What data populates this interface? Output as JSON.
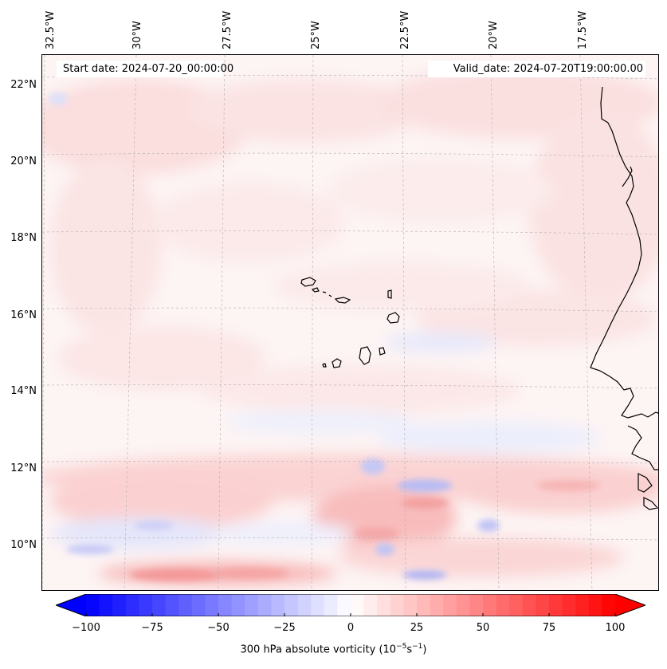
{
  "map": {
    "title_left_label": "Start date: 2024-07-20_00:00:00",
    "title_right_label": "Valid_date: 2024-07-20T19:00:00.00",
    "longitude_labels": [
      "32.5°W",
      "30°W",
      "27.5°W",
      "25°W",
      "22.5°W",
      "20°W",
      "17.5°W"
    ],
    "latitude_labels": [
      "22°N",
      "20°N",
      "18°N",
      "16°N",
      "14°N",
      "12°N",
      "10°N"
    ],
    "variable": "300 hPa absolute vorticity",
    "region": "Cape Verde Islands and West African coast"
  },
  "colorbar": {
    "label_text": "300 hPa absolute vorticity (10",
    "label_exp1": "−5",
    "label_mid": "s",
    "label_exp2": "−1",
    "label_end": ")",
    "ticks": [
      "−100",
      "−75",
      "−50",
      "−25",
      "0",
      "25",
      "50",
      "75",
      "100"
    ],
    "tick_values": [
      -100,
      -75,
      -50,
      -25,
      0,
      25,
      50,
      75,
      100
    ],
    "min": -100,
    "max": 100,
    "colormap": "bwr",
    "color_min": "#0000ff",
    "color_mid": "#ffffff",
    "color_max": "#ff0000",
    "extend": "both"
  }
}
